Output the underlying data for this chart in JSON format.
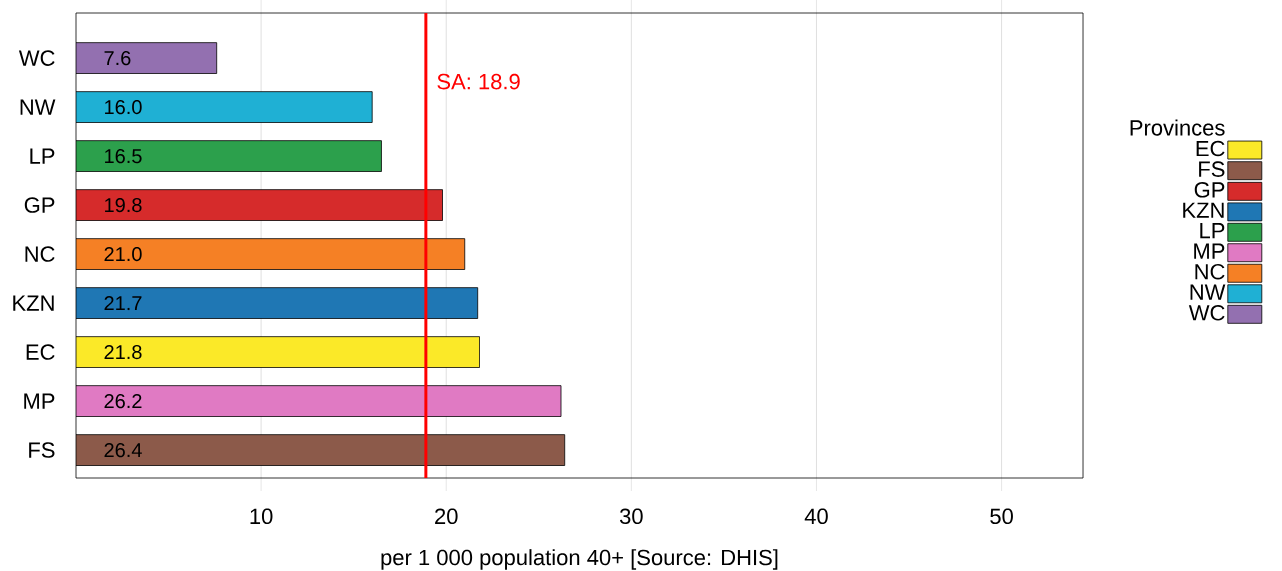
{
  "chart_data": {
    "type": "bar",
    "orientation": "horizontal",
    "xlabel": "per 1 000 population 40+ [Source: DHIS]",
    "legend_title": "Provinces",
    "legend": "right",
    "grid": "x",
    "categories": [
      "WC",
      "NW",
      "LP",
      "GP",
      "NC",
      "KZN",
      "EC",
      "MP",
      "FS"
    ],
    "xlim": [
      0,
      54.4
    ],
    "xticks": [
      10,
      20,
      30,
      40,
      50
    ],
    "ref_lines": [
      {
        "axis": "x",
        "value": 18.9,
        "label": "SA: 18.9",
        "color": "#ff0000"
      }
    ],
    "series": [
      {
        "name": "EC",
        "color": "#fbe928",
        "values": [
          null,
          null,
          null,
          null,
          null,
          null,
          21.8,
          null,
          null
        ],
        "value_labels": [
          null,
          null,
          null,
          null,
          null,
          null,
          "21.8",
          null,
          null
        ]
      },
      {
        "name": "FS",
        "color": "#8c5a4a",
        "values": [
          null,
          null,
          null,
          null,
          null,
          null,
          null,
          null,
          26.4
        ],
        "value_labels": [
          null,
          null,
          null,
          null,
          null,
          null,
          null,
          null,
          "26.4"
        ]
      },
      {
        "name": "GP",
        "color": "#d62b2b",
        "values": [
          null,
          null,
          null,
          19.8,
          null,
          null,
          null,
          null,
          null
        ],
        "value_labels": [
          null,
          null,
          null,
          "19.8",
          null,
          null,
          null,
          null,
          null
        ]
      },
      {
        "name": "KZN",
        "color": "#1f77b4",
        "values": [
          null,
          null,
          null,
          null,
          null,
          21.7,
          null,
          null,
          null
        ],
        "value_labels": [
          null,
          null,
          null,
          null,
          null,
          "21.7",
          null,
          null,
          null
        ]
      },
      {
        "name": "LP",
        "color": "#2ca04c",
        "values": [
          null,
          null,
          16.5,
          null,
          null,
          null,
          null,
          null,
          null
        ],
        "value_labels": [
          null,
          null,
          "16.5",
          null,
          null,
          null,
          null,
          null,
          null
        ]
      },
      {
        "name": "MP",
        "color": "#e07ac3",
        "values": [
          null,
          null,
          null,
          null,
          null,
          null,
          null,
          26.2,
          null
        ],
        "value_labels": [
          null,
          null,
          null,
          null,
          null,
          null,
          null,
          "26.2",
          null
        ]
      },
      {
        "name": "NC",
        "color": "#f58025",
        "values": [
          null,
          null,
          null,
          null,
          21.0,
          null,
          null,
          null,
          null
        ],
        "value_labels": [
          null,
          null,
          null,
          null,
          "21.0",
          null,
          null,
          null,
          null
        ]
      },
      {
        "name": "NW",
        "color": "#1fb0d4",
        "values": [
          null,
          16.0,
          null,
          null,
          null,
          null,
          null,
          null,
          null
        ],
        "value_labels": [
          null,
          "16.0",
          null,
          null,
          null,
          null,
          null,
          null,
          null
        ]
      },
      {
        "name": "WC",
        "color": "#9370b0",
        "values": [
          7.6,
          null,
          null,
          null,
          null,
          null,
          null,
          null,
          null
        ],
        "value_labels": [
          "7.6",
          null,
          null,
          null,
          null,
          null,
          null,
          null,
          null
        ]
      }
    ]
  }
}
